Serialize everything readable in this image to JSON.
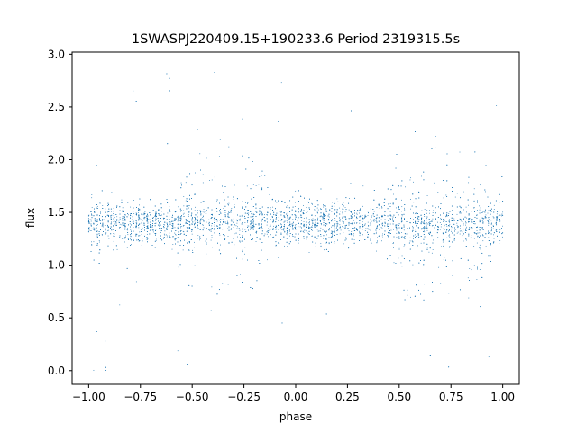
{
  "chart_data": {
    "type": "scatter",
    "title": "1SWASPJ220409.15+190233.6 Period 2319315.5s",
    "xlabel": "phase",
    "ylabel": "flux",
    "xlim": [
      -1.08,
      1.08
    ],
    "ylim": [
      -0.13,
      3.02
    ],
    "xticks": [
      -1.0,
      -0.75,
      -0.5,
      -0.25,
      0.0,
      0.25,
      0.5,
      0.75,
      1.0
    ],
    "xtick_labels": [
      "−1.00",
      "−0.75",
      "−0.50",
      "−0.25",
      "0.00",
      "0.25",
      "0.50",
      "0.75",
      "1.00"
    ],
    "yticks": [
      0.0,
      0.5,
      1.0,
      1.5,
      2.0,
      2.5,
      3.0
    ],
    "ytick_labels": [
      "0.0",
      "0.5",
      "1.0",
      "1.5",
      "2.0",
      "2.5",
      "3.0"
    ],
    "grid": false,
    "marker_color": "#1f77b4",
    "series": [
      {
        "x_range": [
          -1.0,
          1.0
        ],
        "envelope": {
          "phase": [
            -1.0,
            -0.95,
            -0.9,
            -0.85,
            -0.8,
            -0.75,
            -0.7,
            -0.65,
            -0.6,
            -0.55,
            -0.5,
            -0.45,
            -0.4,
            -0.35,
            -0.3,
            -0.25,
            -0.2,
            -0.15,
            -0.1,
            -0.05,
            0.0,
            0.05,
            0.1,
            0.15,
            0.2,
            0.25,
            0.3,
            0.35,
            0.4,
            0.45,
            0.5,
            0.55,
            0.6,
            0.65,
            0.7,
            0.75,
            0.8,
            0.85,
            0.9,
            0.95,
            1.0
          ],
          "median_flux": [
            1.4,
            1.4,
            1.4,
            1.4,
            1.4,
            1.4,
            1.4,
            1.4,
            1.4,
            1.4,
            1.4,
            1.4,
            1.4,
            1.4,
            1.4,
            1.4,
            1.4,
            1.4,
            1.4,
            1.4,
            1.4,
            1.4,
            1.4,
            1.4,
            1.4,
            1.4,
            1.4,
            1.4,
            1.4,
            1.4,
            1.4,
            1.4,
            1.4,
            1.4,
            1.4,
            1.4,
            1.4,
            1.4,
            1.4,
            1.4,
            1.4
          ],
          "spread": [
            0.3,
            0.55,
            0.35,
            0.3,
            0.28,
            0.28,
            0.25,
            0.28,
            0.35,
            0.6,
            0.85,
            0.95,
            0.95,
            0.9,
            0.85,
            0.8,
            0.8,
            0.55,
            0.45,
            0.4,
            0.35,
            0.3,
            0.3,
            0.28,
            0.28,
            0.28,
            0.3,
            0.3,
            0.35,
            0.55,
            0.75,
            0.85,
            0.9,
            0.95,
            0.9,
            0.85,
            0.8,
            0.75,
            0.7,
            0.5,
            0.45
          ]
        }
      }
    ]
  }
}
